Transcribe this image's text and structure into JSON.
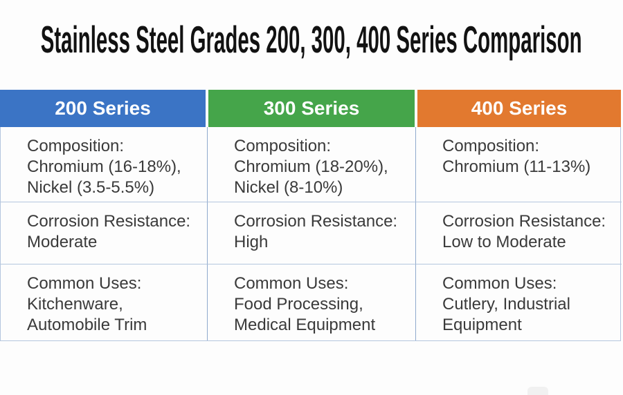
{
  "title": "Stainless Steel Grades 200, 300, 400 Series Comparison",
  "colors": {
    "series_200": "#3B74C5",
    "series_300": "#45A54A",
    "series_400": "#E2792F",
    "header_text": "#FFFFFF",
    "body_text": "#3A3A3A",
    "grid_border": "#B4C6DE",
    "column_divider": "#8FA9CC",
    "background": "#FDFDFD"
  },
  "table": {
    "columns": [
      {
        "header": "200 Series",
        "cells": [
          "Composition:\nChromium (16-18%),\nNickel (3.5-5.5%)",
          "Corrosion Resistance:\nModerate",
          "Common Uses:\nKitchenware,\nAutomobile Trim"
        ]
      },
      {
        "header": "300 Series",
        "cells": [
          "Composition:\nChromium (18-20%),\nNickel (8-10%)",
          "Corrosion Resistance:\nHigh",
          "Common Uses:\nFood Processing,\nMedical Equipment"
        ]
      },
      {
        "header": "400 Series",
        "cells": [
          "Composition:\nChromium (11-13%)",
          "Corrosion Resistance:\nLow to Moderate",
          "Common Uses:\nCutlery, Industrial\nEquipment"
        ]
      }
    ]
  },
  "chart_data": {
    "type": "table",
    "title": "Stainless Steel Grades 200, 300, 400 Series Comparison",
    "columns": [
      "200 Series",
      "300 Series",
      "400 Series"
    ],
    "row_attributes": [
      "Composition",
      "Corrosion Resistance",
      "Common Uses"
    ],
    "rows": [
      {
        "attribute": "Composition",
        "values": [
          "Chromium (16-18%), Nickel (3.5-5.5%)",
          "Chromium (18-20%), Nickel (8-10%)",
          "Chromium (11-13%)"
        ]
      },
      {
        "attribute": "Corrosion Resistance",
        "values": [
          "Moderate",
          "High",
          "Low to Moderate"
        ]
      },
      {
        "attribute": "Common Uses",
        "values": [
          "Kitchenware, Automobile Trim",
          "Food Processing, Medical Equipment",
          "Cutlery, Industrial Equipment"
        ]
      }
    ],
    "legend_position": "none",
    "grid": true
  }
}
